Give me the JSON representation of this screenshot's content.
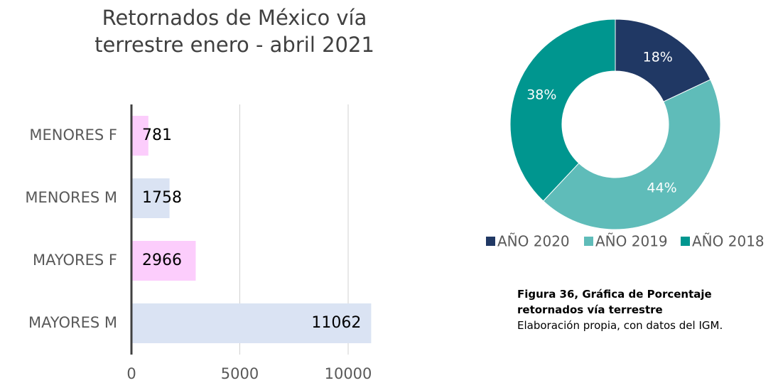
{
  "chart_data": [
    {
      "type": "bar",
      "orientation": "horizontal",
      "title": "Retornados de México vía terrestre enero - abril 2021",
      "categories": [
        "MENORES F",
        "MENORES M",
        "MAYORES F",
        "MAYORES M"
      ],
      "values": [
        781,
        1758,
        2966,
        11062
      ],
      "colors": [
        "#fccdfc",
        "#dae3f3",
        "#fccdfc",
        "#dae3f3"
      ],
      "xlim": [
        0,
        12000
      ],
      "xticks": [
        0,
        5000,
        10000
      ],
      "grid": true
    },
    {
      "type": "pie",
      "donut": true,
      "categories": [
        "AÑO 2020",
        "AÑO 2019",
        "AÑO 2018"
      ],
      "values": [
        18,
        44,
        38
      ],
      "value_labels": [
        "18%",
        "44%",
        "38%"
      ],
      "colors": [
        "#203864",
        "#5fbcb9",
        "#00968f"
      ],
      "legend": "bottom"
    }
  ],
  "caption": {
    "title": "Figura 36, Gráfica de Porcentaje retornados vía terrestre",
    "text": "Elaboración propia, con datos del IGM."
  }
}
